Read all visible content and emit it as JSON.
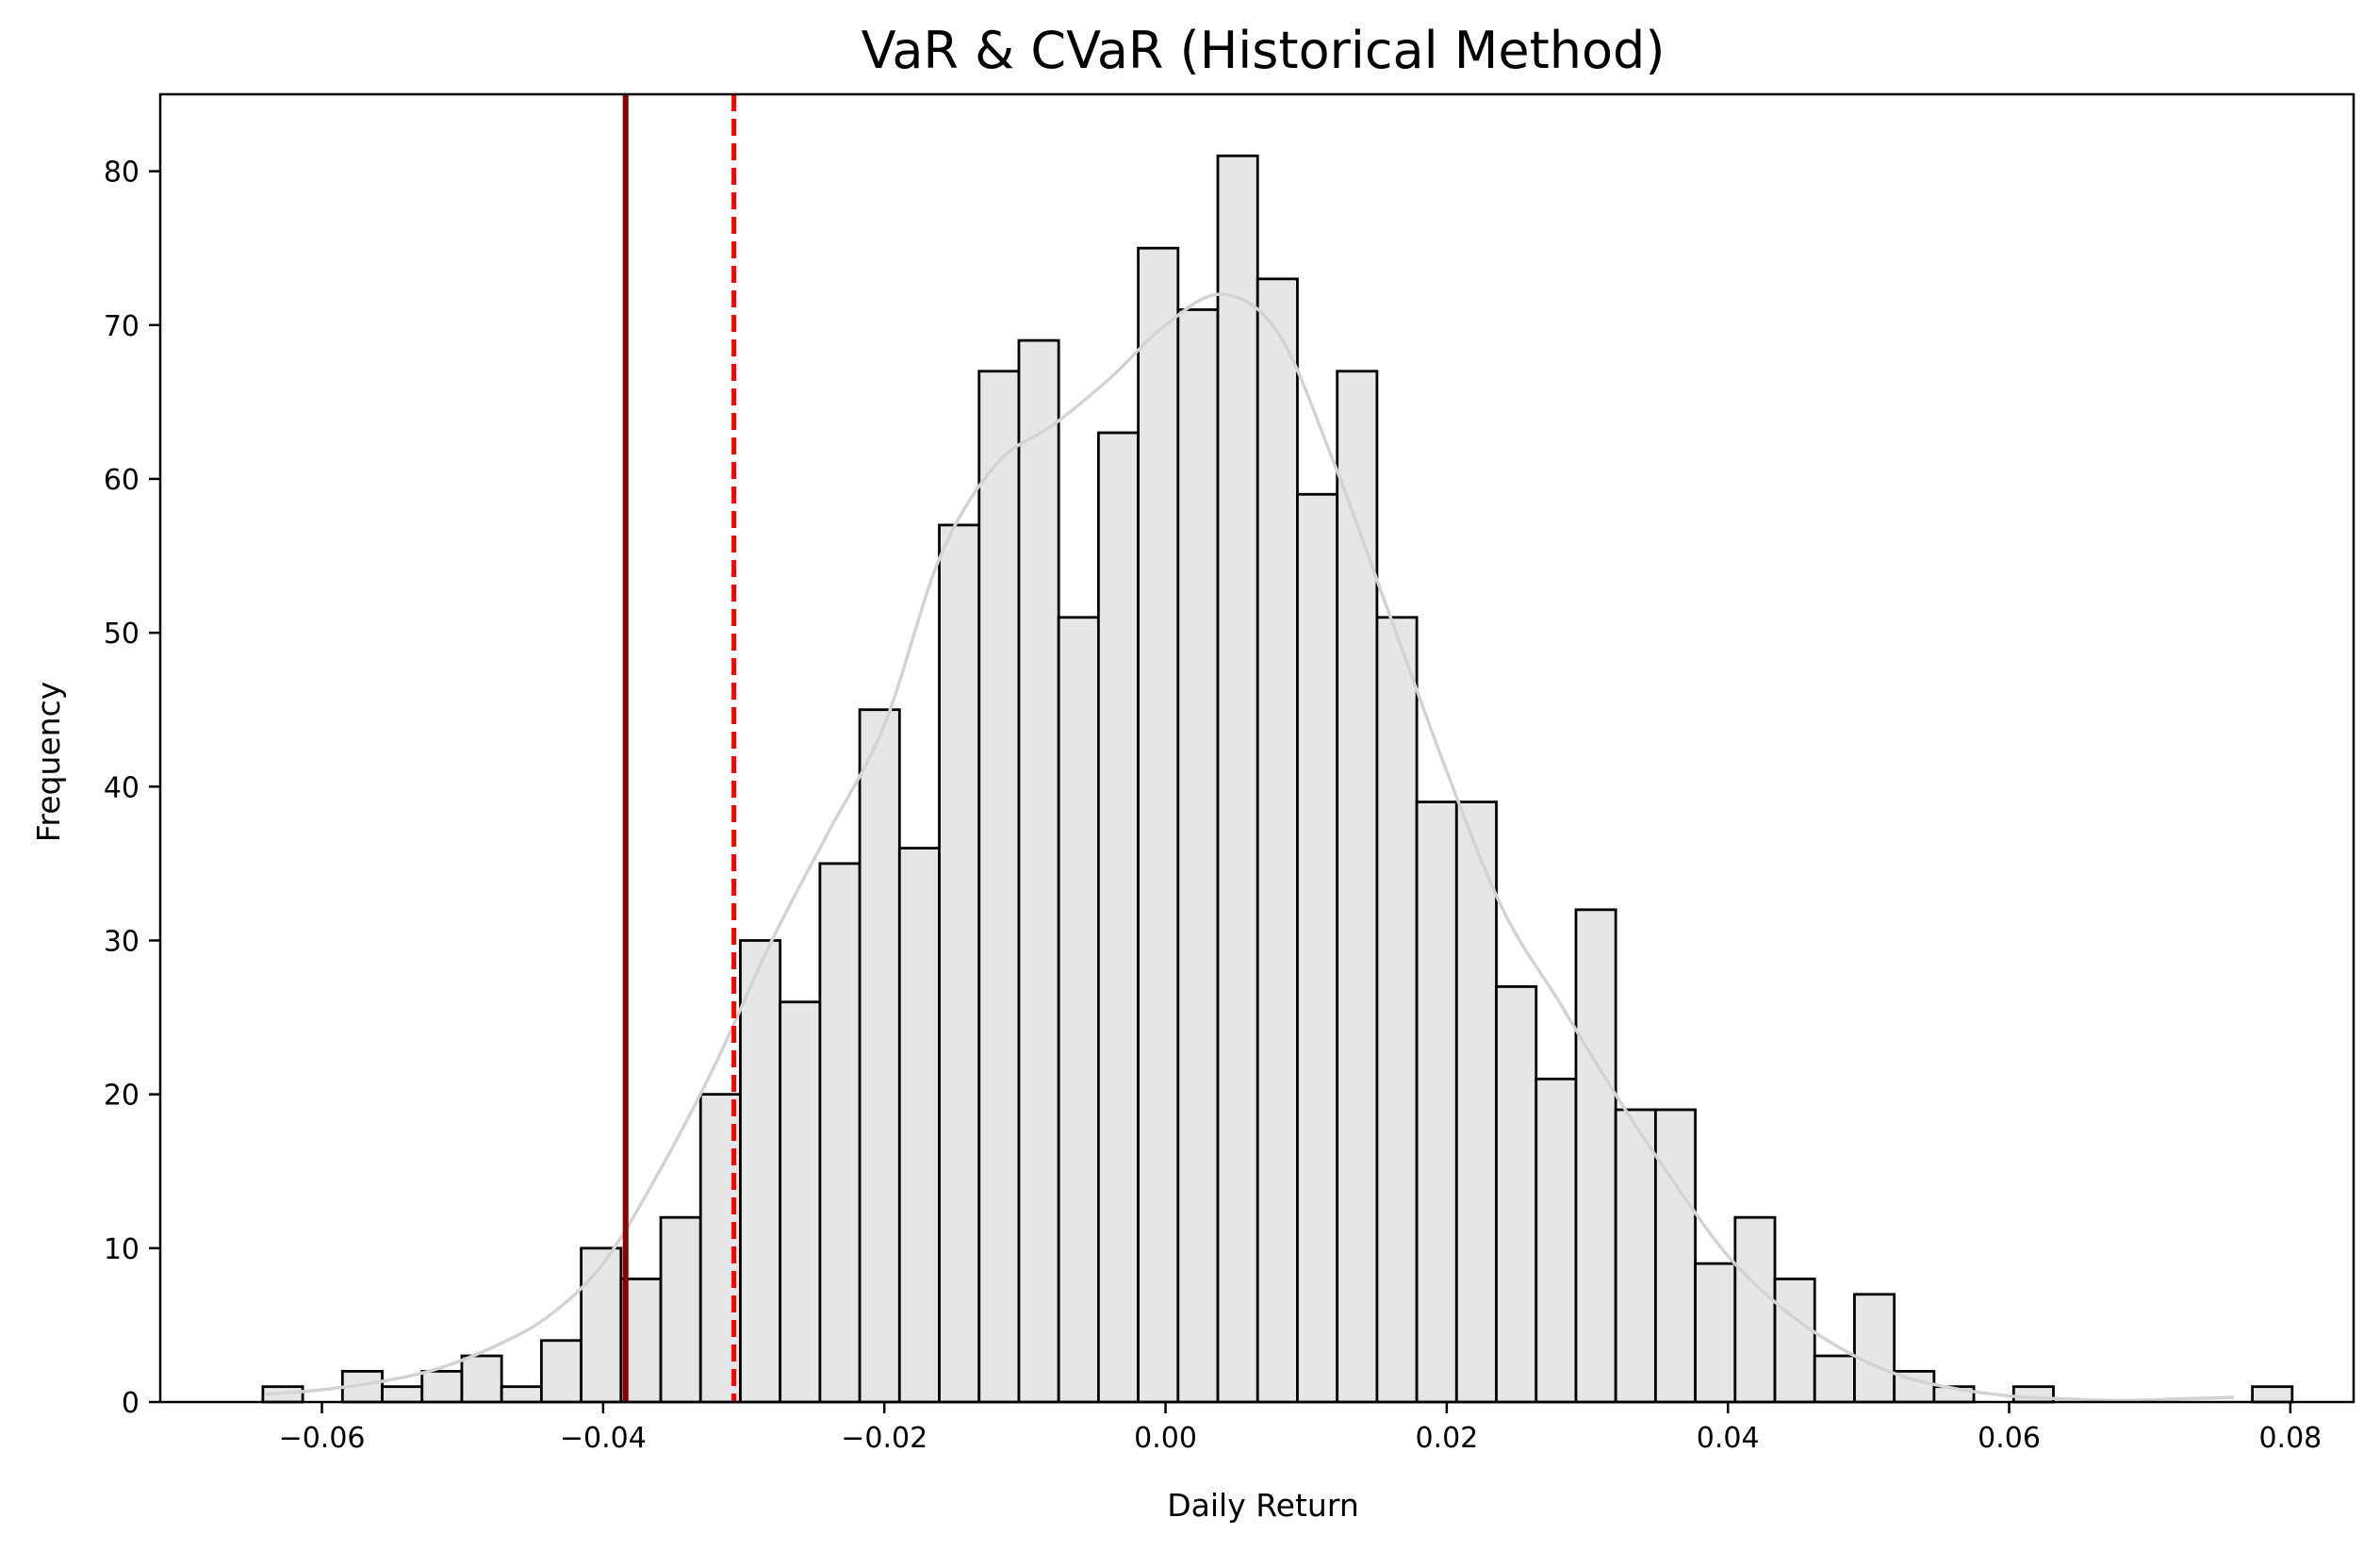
{
  "chart_data": {
    "type": "bar",
    "title": "VaR & CVaR (Historical Method)",
    "xlabel": "Daily Return",
    "ylabel": "Frequency",
    "xlim": [
      -0.0715,
      0.0845
    ],
    "ylim": [
      0,
      85
    ],
    "x_ticks": [
      -0.06,
      -0.04,
      -0.02,
      0.0,
      0.02,
      0.04,
      0.06,
      0.08
    ],
    "x_tick_labels": [
      "−0.06",
      "−0.04",
      "−0.02",
      "0.00",
      "0.02",
      "0.04",
      "0.06",
      "0.08"
    ],
    "y_ticks": [
      0,
      10,
      20,
      30,
      40,
      50,
      60,
      70,
      80
    ],
    "y_tick_labels": [
      "0",
      "10",
      "20",
      "30",
      "40",
      "50",
      "60",
      "70",
      "80"
    ],
    "grid": false,
    "bins": {
      "start": -0.0642,
      "width": 0.00283,
      "counts": [
        1,
        0,
        2,
        1,
        2,
        3,
        1,
        4,
        10,
        8,
        12,
        20,
        30,
        26,
        35,
        45,
        36,
        57,
        67,
        69,
        51,
        63,
        75,
        71,
        81,
        73,
        59,
        67,
        51,
        39,
        39,
        27,
        21,
        32,
        19,
        19,
        9,
        12,
        8,
        3,
        7,
        2,
        1,
        0,
        1,
        0,
        0,
        0,
        0,
        0,
        1
      ]
    },
    "kde_curve": {
      "x": [
        -0.064,
        -0.06,
        -0.056,
        -0.052,
        -0.048,
        -0.044,
        -0.04,
        -0.036,
        -0.032,
        -0.028,
        -0.024,
        -0.02,
        -0.016,
        -0.012,
        -0.008,
        -0.004,
        0.0,
        0.004,
        0.008,
        0.012,
        0.016,
        0.02,
        0.024,
        0.028,
        0.032,
        0.036,
        0.04,
        0.044,
        0.048,
        0.052,
        0.056,
        0.06,
        0.064,
        0.068,
        0.072,
        0.076
      ],
      "y": [
        0.5,
        0.8,
        1.3,
        2.1,
        3.5,
        5.5,
        9.0,
        15.0,
        22.0,
        30.0,
        37.0,
        44.0,
        55.0,
        61.0,
        63.5,
        66.5,
        70.0,
        72.0,
        69.5,
        61.0,
        51.0,
        41.0,
        32.0,
        26.0,
        20.0,
        14.5,
        9.5,
        6.0,
        3.5,
        1.8,
        0.9,
        0.4,
        0.2,
        0.1,
        0.2,
        0.3
      ],
      "color": "#d3d3d3"
    },
    "bar_fill": "#e6e6e6",
    "bar_edge": "#000000",
    "reference_lines": [
      {
        "x": -0.0307,
        "style": "dashed",
        "color": "#ff0000"
      },
      {
        "x": -0.0384,
        "style": "solid",
        "color": "#8b0000"
      }
    ]
  }
}
